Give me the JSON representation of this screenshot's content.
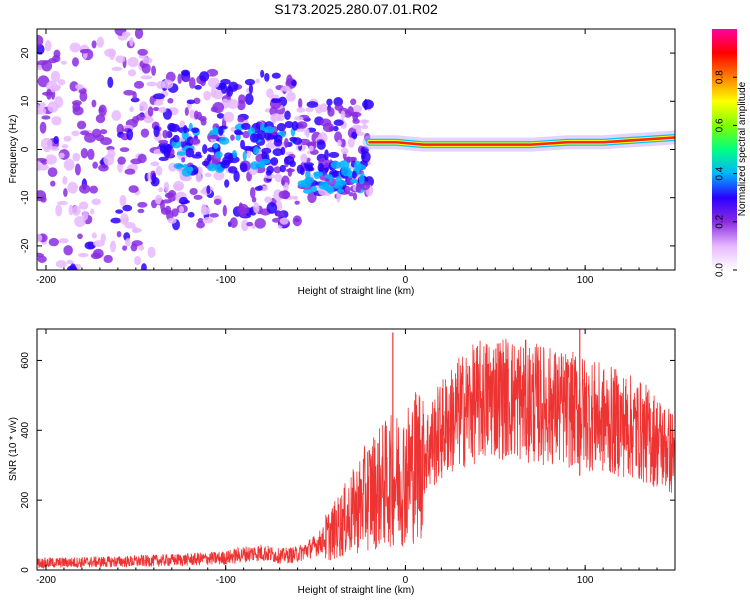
{
  "title": "S173.2025.280.07.01.R02",
  "chart_data": [
    {
      "type": "heatmap",
      "name": "spectrogram",
      "xlabel": "Height of straight line (km)",
      "ylabel": "Frequency (Hz)",
      "xlim": [
        -205,
        150
      ],
      "ylim": [
        -25,
        25
      ],
      "xticks": [
        -200,
        -100,
        0,
        100
      ],
      "yticks": [
        -20,
        -10,
        0,
        10,
        20
      ],
      "colorbar": {
        "label": "Normalized spectral amplitude",
        "range": [
          0.0,
          1.0
        ],
        "ticks": [
          0.0,
          0.2,
          0.4,
          0.6,
          0.8
        ],
        "tick_labels": [
          "0.0",
          "0.2",
          "0.4",
          "0.6",
          "0.8"
        ],
        "colormap": [
          "#ffffff",
          "#e6b8ff",
          "#8a2be2",
          "#2a00ff",
          "#00b4ff",
          "#00ff80",
          "#80ff00",
          "#ffff00",
          "#ff8000",
          "#ff0000",
          "#ff00a0"
        ]
      },
      "line_track": [
        {
          "x": -20,
          "y": 1.5
        },
        {
          "x": -5,
          "y": 1.5
        },
        {
          "x": 10,
          "y": 1.0
        },
        {
          "x": 40,
          "y": 1.0
        },
        {
          "x": 70,
          "y": 1.0
        },
        {
          "x": 90,
          "y": 1.5
        },
        {
          "x": 110,
          "y": 1.5
        },
        {
          "x": 130,
          "y": 2.0
        },
        {
          "x": 150,
          "y": 2.5
        }
      ]
    },
    {
      "type": "line",
      "name": "snr",
      "xlabel": "Height of straight line (km)",
      "ylabel": "SNR (10 * v/v)",
      "xlim": [
        -205,
        150
      ],
      "ylim": [
        0,
        690
      ],
      "xticks": [
        -200,
        -100,
        0,
        100
      ],
      "yticks": [
        0,
        200,
        400,
        600
      ],
      "series": [
        {
          "name": "SNR",
          "color": "#ee3333",
          "x": [
            -205,
            -180,
            -150,
            -120,
            -100,
            -90,
            -80,
            -70,
            -60,
            -50,
            -40,
            -30,
            -20,
            -10,
            0,
            10,
            20,
            30,
            40,
            50,
            60,
            70,
            80,
            90,
            100,
            110,
            120,
            130,
            140,
            150
          ],
          "y": [
            20,
            22,
            25,
            30,
            35,
            45,
            50,
            40,
            45,
            70,
            110,
            160,
            220,
            250,
            270,
            330,
            400,
            450,
            480,
            500,
            490,
            480,
            470,
            460,
            450,
            430,
            420,
            400,
            370,
            330
          ],
          "spikes": [
            {
              "x": -7,
              "y": 680
            },
            {
              "x": 97,
              "y": 690
            },
            {
              "x": 97,
              "y": 270
            }
          ]
        }
      ]
    }
  ]
}
